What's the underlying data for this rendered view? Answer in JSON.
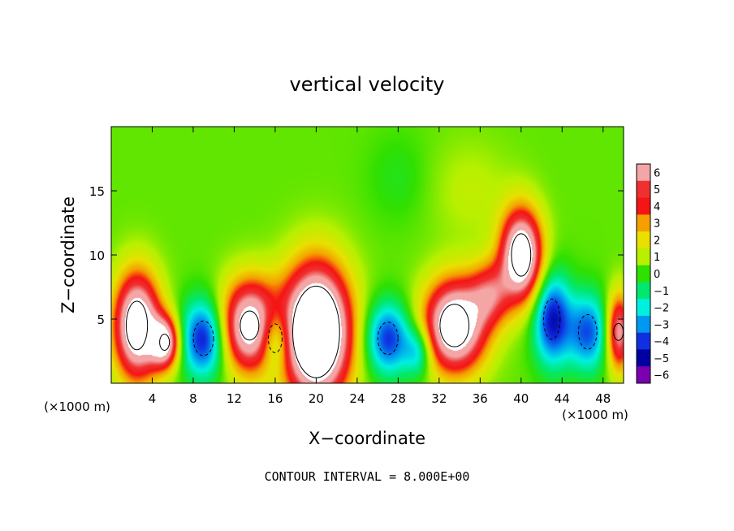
{
  "chart_data": {
    "type": "heatmap",
    "title": "vertical velocity",
    "xlabel": "X−coordinate",
    "ylabel": "Z−coordinate",
    "x_unit_left": "(×1000 m)",
    "x_unit_right": "(×1000 m)",
    "x_ticks": [
      "4",
      "8",
      "12",
      "16",
      "20",
      "24",
      "28",
      "32",
      "36",
      "40",
      "44",
      "48"
    ],
    "x_tick_values": [
      4,
      8,
      12,
      16,
      20,
      24,
      28,
      32,
      36,
      40,
      44,
      48
    ],
    "y_ticks": [
      "5",
      "10",
      "15"
    ],
    "y_tick_values": [
      5,
      10,
      15
    ],
    "xlim": [
      0,
      50
    ],
    "ylim": [
      0,
      20
    ],
    "colorbar": {
      "levels": [
        6,
        5,
        4,
        3,
        2,
        1,
        0,
        -1,
        -2,
        -3,
        -4,
        -5,
        -6
      ],
      "labels": [
        "6",
        "5",
        "4",
        "3",
        "2",
        "1",
        "0",
        "−1",
        "−2",
        "−3",
        "−4",
        "−5",
        "−6"
      ],
      "colors": [
        "#f4a5a5",
        "#f03030",
        "#f51515",
        "#f5a000",
        "#e8e000",
        "#b8f000",
        "#30e000",
        "#00e870",
        "#00f0e0",
        "#0098f0",
        "#1030e0",
        "#0000a0",
        "#7a00b0"
      ]
    },
    "features": [
      {
        "type": "updraft",
        "x": 2.5,
        "z": 4.5,
        "w": 2.2,
        "h": 4.0,
        "peak": 9
      },
      {
        "type": "updraft",
        "x": 5.2,
        "z": 3.2,
        "w": 1.4,
        "h": 2.0,
        "peak": 7
      },
      {
        "type": "updraft",
        "x": 13.5,
        "z": 4.5,
        "w": 2.8,
        "h": 3.5,
        "peak": 8
      },
      {
        "type": "updraft",
        "x": 20.0,
        "z": 4.0,
        "w": 3.2,
        "h": 5.0,
        "peak": 12
      },
      {
        "type": "updraft",
        "x": 33.5,
        "z": 4.5,
        "w": 3.0,
        "h": 3.5,
        "peak": 9
      },
      {
        "type": "updraft",
        "x": 40.0,
        "z": 10.0,
        "w": 2.0,
        "h": 3.5,
        "peak": 9
      },
      {
        "type": "updraft",
        "x": 37.0,
        "z": 7.0,
        "w": 2.0,
        "h": 2.5,
        "peak": 4
      },
      {
        "type": "updraft",
        "x": 49.5,
        "z": 4.0,
        "w": 1.2,
        "h": 3.0,
        "peak": 6
      },
      {
        "type": "downdraft",
        "x": 9.0,
        "z": 3.5,
        "w": 2.2,
        "h": 3.0,
        "peak": -5
      },
      {
        "type": "downdraft",
        "x": 16.0,
        "z": 3.5,
        "w": 1.5,
        "h": 2.5,
        "peak": -4
      },
      {
        "type": "downdraft",
        "x": 27.0,
        "z": 3.5,
        "w": 2.2,
        "h": 2.8,
        "peak": -4.5
      },
      {
        "type": "downdraft",
        "x": 30.0,
        "z": 2.5,
        "w": 1.4,
        "h": 2.0,
        "peak": -3
      },
      {
        "type": "downdraft",
        "x": 43.0,
        "z": 5.0,
        "w": 1.8,
        "h": 3.5,
        "peak": -5
      },
      {
        "type": "downdraft",
        "x": 46.5,
        "z": 4.0,
        "w": 2.0,
        "h": 3.0,
        "peak": -4
      },
      {
        "type": "weak",
        "x": 28.0,
        "z": 16.0,
        "w": 3.0,
        "h": 3.5,
        "peak": -0.6
      },
      {
        "type": "weak",
        "x": 35.0,
        "z": 15.0,
        "w": 4.0,
        "h": 4.0,
        "peak": 0.8
      }
    ]
  },
  "footer": {
    "contour_interval": "CONTOUR INTERVAL = 8.000E+00"
  }
}
